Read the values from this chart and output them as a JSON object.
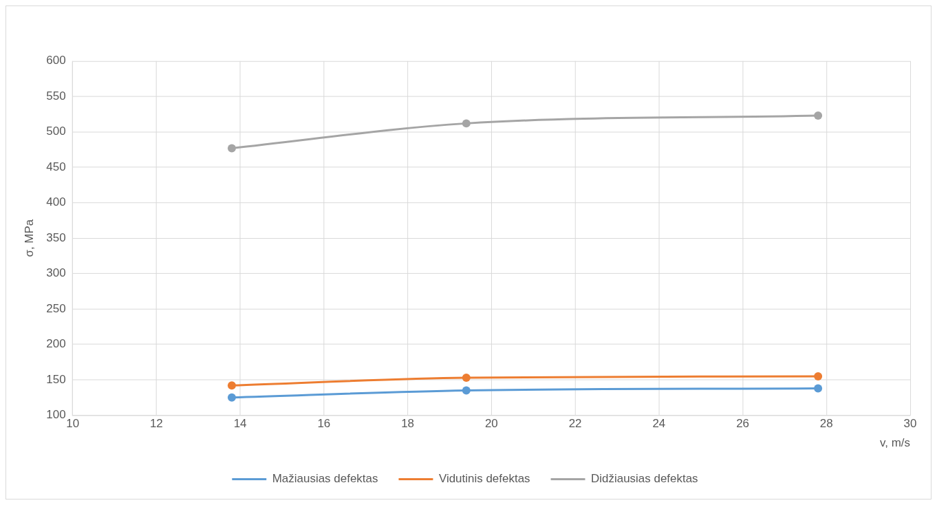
{
  "chart_data": {
    "type": "line",
    "xlabel": "v, m/s",
    "ylabel": "σ, MPa",
    "x": [
      13.8,
      19.4,
      27.8
    ],
    "series": [
      {
        "name": "Mažiausias defektas",
        "color": "#5b9bd5",
        "values": [
          125,
          135,
          138
        ]
      },
      {
        "name": "Vidutinis defektas",
        "color": "#ed7d31",
        "values": [
          142,
          153,
          155
        ]
      },
      {
        "name": "Didžiausias defektas",
        "color": "#a5a5a5",
        "values": [
          477,
          512,
          523
        ]
      }
    ],
    "xlim": [
      10,
      30
    ],
    "xticks": [
      10,
      12,
      14,
      16,
      18,
      20,
      22,
      24,
      26,
      28,
      30
    ],
    "ylim": [
      100,
      600
    ],
    "yticks": [
      100,
      150,
      200,
      250,
      300,
      350,
      400,
      450,
      500,
      550,
      600
    ],
    "grid": true,
    "legend": "bottom",
    "marker": "circle",
    "line_style": "solid"
  }
}
